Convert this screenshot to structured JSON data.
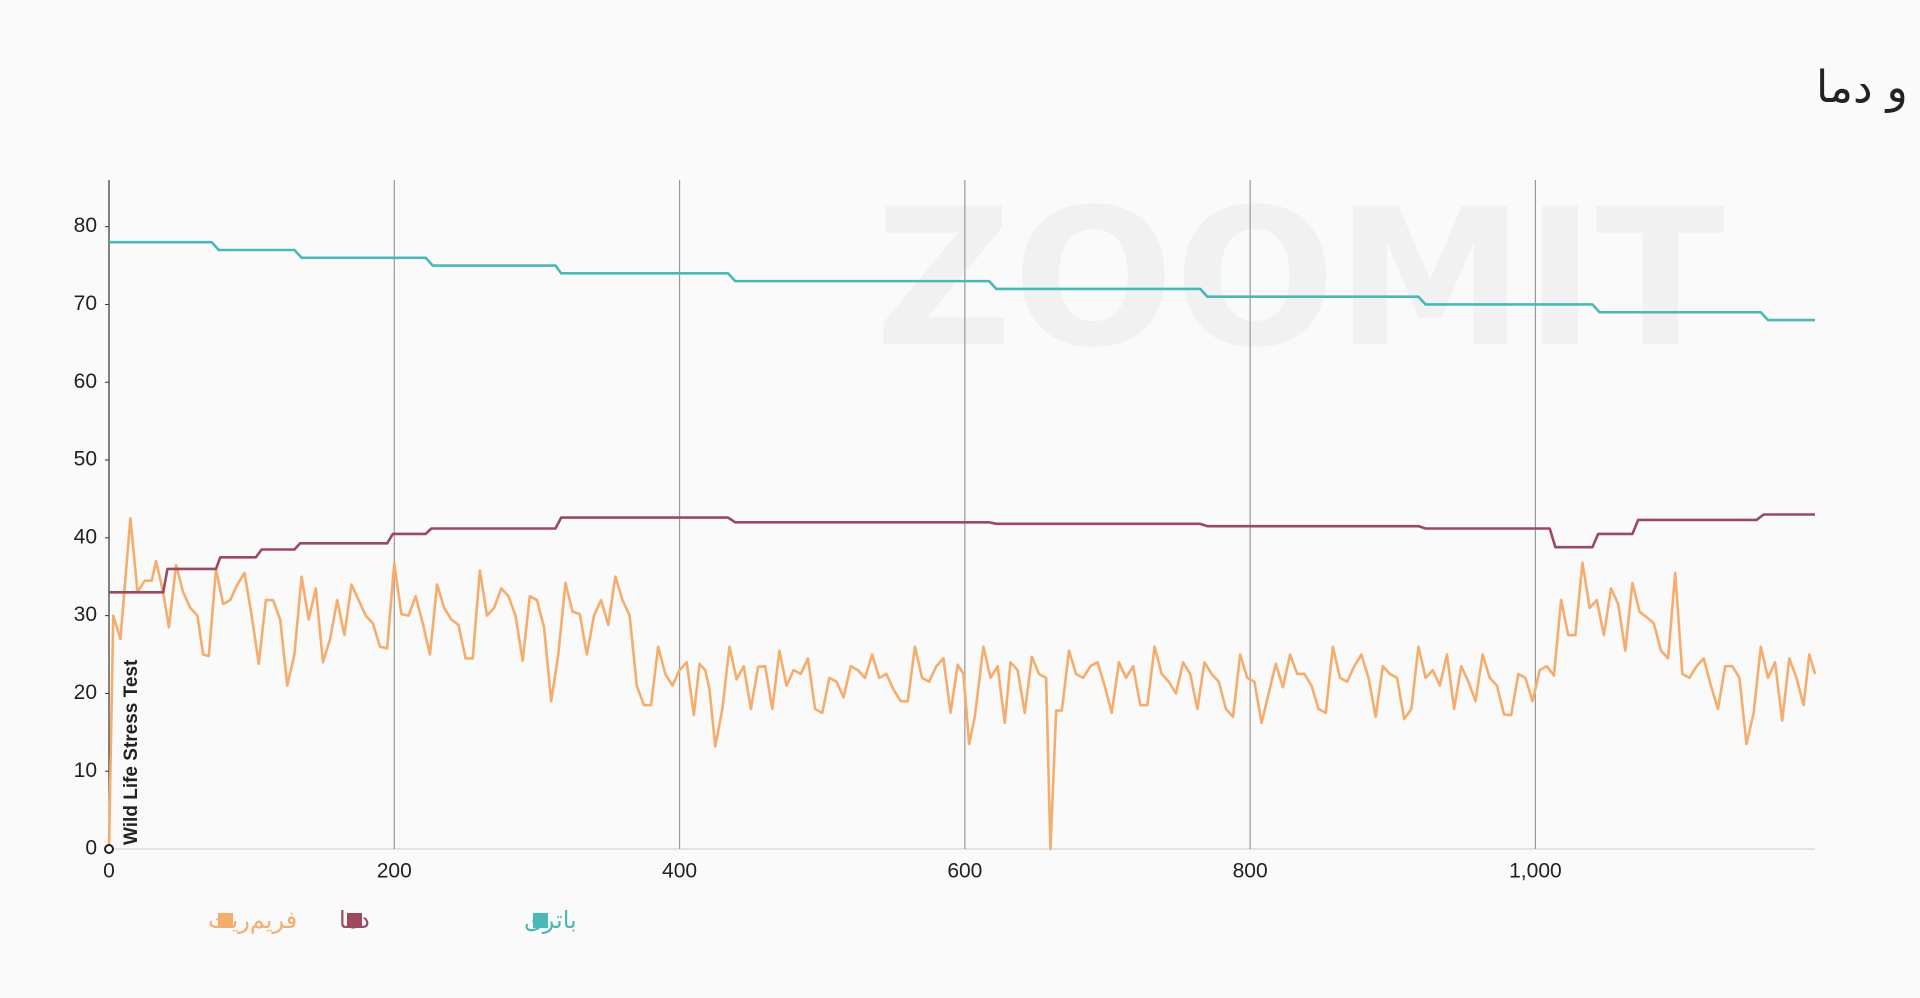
{
  "chart_data": {
    "type": "line",
    "title": "نمودار تغییرات نرخ فریم و دما",
    "watermark": "ZOOMIT",
    "annotation": "Wild Life Stress Test",
    "xlim": [
      0,
      1196
    ],
    "ylim": [
      0,
      86
    ],
    "xticks": [
      0,
      200,
      400,
      600,
      800,
      {
        "value": 1000,
        "label": "1,000"
      }
    ],
    "yticks": [
      0,
      10,
      20,
      30,
      40,
      50,
      60,
      70,
      80
    ],
    "grid": true,
    "legend": "bottom-left",
    "series": [
      {
        "name": "فریم‌ریت",
        "color": "#f5ad6e",
        "x": [
          0,
          3,
          8,
          15,
          20,
          25,
          30,
          33,
          38,
          42,
          47,
          52,
          57,
          62,
          66,
          70,
          75,
          80,
          85,
          90,
          95,
          100,
          105,
          110,
          115,
          120,
          125,
          130,
          135,
          140,
          145,
          150,
          155,
          160,
          165,
          170,
          175,
          180,
          185,
          190,
          195,
          200,
          205,
          210,
          215,
          220,
          225,
          230,
          235,
          240,
          245,
          250,
          255,
          260,
          265,
          270,
          275,
          280,
          285,
          290,
          295,
          300,
          305,
          310,
          315,
          320,
          325,
          330,
          335,
          340,
          345,
          350,
          355,
          360,
          365,
          370,
          375,
          380,
          385,
          390,
          395,
          400,
          405,
          410,
          414,
          418,
          421,
          425,
          430,
          435,
          440,
          445,
          450,
          455,
          460,
          465,
          470,
          475,
          480,
          485,
          490,
          495,
          500,
          505,
          510,
          515,
          520,
          525,
          530,
          535,
          540,
          545,
          550,
          555,
          560,
          565,
          570,
          575,
          580,
          585,
          590,
          595,
          599,
          603,
          607,
          613,
          618,
          623,
          628,
          632,
          637,
          642,
          647,
          652,
          657,
          660,
          664,
          668,
          673,
          678,
          683,
          688,
          693,
          698,
          703,
          708,
          713,
          718,
          723,
          728,
          733,
          738,
          743,
          748,
          753,
          758,
          763,
          768,
          773,
          778,
          783,
          788,
          793,
          798,
          803,
          808,
          813,
          818,
          823,
          828,
          833,
          838,
          843,
          848,
          853,
          858,
          863,
          868,
          873,
          878,
          883,
          888,
          893,
          898,
          903,
          908,
          913,
          918,
          923,
          928,
          933,
          938,
          943,
          948,
          953,
          958,
          963,
          968,
          973,
          978,
          983,
          988,
          993,
          998,
          1003,
          1008,
          1013,
          1018,
          1023,
          1028,
          1033,
          1038,
          1043,
          1048,
          1053,
          1058,
          1063,
          1068,
          1073,
          1078,
          1083,
          1088,
          1093,
          1098,
          1103,
          1108,
          1113,
          1118,
          1123,
          1128,
          1133,
          1138,
          1143,
          1148,
          1153,
          1158,
          1163,
          1168,
          1173,
          1178,
          1183,
          1188,
          1192,
          1196
        ],
        "values": [
          0,
          30,
          27,
          42.5,
          33,
          34.5,
          34.5,
          37,
          33,
          28.5,
          36.5,
          33,
          31,
          30,
          25,
          24.8,
          36,
          31.5,
          32,
          34,
          35.5,
          30,
          23.8,
          32,
          32,
          29.5,
          21,
          25,
          35,
          29.5,
          33.5,
          24,
          27,
          32,
          27.5,
          34,
          32,
          30,
          29,
          26,
          25.8,
          36.7,
          30.2,
          30,
          32.5,
          29,
          25,
          34,
          31,
          29.5,
          28.8,
          24.5,
          24.5,
          35.8,
          30,
          31,
          33.5,
          32.5,
          30,
          24.2,
          32.5,
          32,
          28.5,
          19,
          25,
          34.2,
          30.5,
          30.2,
          25,
          30,
          32,
          28.8,
          35,
          32,
          30,
          21,
          18.5,
          18.5,
          26,
          22.5,
          21,
          23,
          24,
          17.2,
          23.8,
          23,
          20.5,
          13.2,
          18,
          26,
          21.8,
          23.5,
          18,
          23.4,
          23.5,
          18,
          25.5,
          21,
          23,
          22.5,
          24.5,
          18,
          17.5,
          22,
          21.5,
          19.5,
          23.5,
          23,
          22,
          25,
          22,
          22.5,
          20.5,
          19,
          19,
          26,
          22,
          21.5,
          23.5,
          24.5,
          17.5,
          23.7,
          22.5,
          13.5,
          17,
          26,
          22,
          23.5,
          16.2,
          24,
          23,
          17.5,
          24.7,
          22.5,
          22,
          0,
          17.8,
          17.8,
          25.5,
          22.5,
          22,
          23.5,
          24,
          21,
          17.5,
          24,
          22,
          23.5,
          18.5,
          18.5,
          26,
          22.5,
          21.5,
          20,
          24,
          22.5,
          18,
          24,
          22.5,
          21.5,
          18,
          17,
          25,
          22,
          21.5,
          16.2,
          20,
          23.8,
          20.8,
          25,
          22.5,
          22.5,
          21,
          18,
          17.5,
          26,
          22,
          21.5,
          23.5,
          25,
          22,
          17,
          23.5,
          22.5,
          22,
          16.7,
          18,
          26,
          22,
          23,
          21,
          25,
          18,
          23.5,
          21.5,
          19,
          25,
          22,
          21,
          17.3,
          17.2,
          22.5,
          22,
          19,
          23,
          23.5,
          22.3,
          32,
          27.5,
          27.5,
          36.8,
          31,
          32,
          27.5,
          33.5,
          31.5,
          25.5,
          34.2,
          30.5,
          29.8,
          29,
          25.5,
          24.5,
          35.5,
          22.5,
          22,
          23.5,
          24.5,
          21,
          18,
          23.5,
          23.5,
          22,
          13.5,
          17.5,
          26,
          22,
          24,
          16.5,
          24.5,
          22,
          18.5,
          25,
          22.5
        ]
      },
      {
        "name": "دما",
        "color": "#9b4a5e",
        "x": [
          0,
          38,
          41,
          75,
          78,
          103,
          107,
          130,
          134,
          195,
          199,
          222,
          226,
          313,
          317,
          434,
          439,
          617,
          622,
          765,
          770,
          918,
          923,
          1010,
          1014,
          1040,
          1044,
          1068,
          1072,
          1155,
          1160,
          1196
        ],
        "values": [
          33,
          33,
          36,
          36,
          37.5,
          37.5,
          38.5,
          38.5,
          39.3,
          39.3,
          40.5,
          40.5,
          41.2,
          41.2,
          42.6,
          42.6,
          42,
          42,
          41.8,
          41.8,
          41.5,
          41.5,
          41.2,
          41.2,
          38.8,
          38.8,
          40.5,
          40.5,
          42.3,
          42.3,
          43,
          43
        ]
      },
      {
        "name": "باتری",
        "color": "#4cb8b6",
        "x": [
          0,
          72,
          77,
          130,
          135,
          222,
          227,
          313,
          317,
          434,
          439,
          617,
          622,
          765,
          770,
          918,
          923,
          1040,
          1045,
          1158,
          1163,
          1196
        ],
        "values": [
          78,
          78,
          77,
          77,
          76,
          76,
          75,
          75,
          74,
          74,
          73,
          73,
          72,
          72,
          71,
          71,
          70,
          70,
          69,
          69,
          68,
          68
        ]
      }
    ]
  }
}
